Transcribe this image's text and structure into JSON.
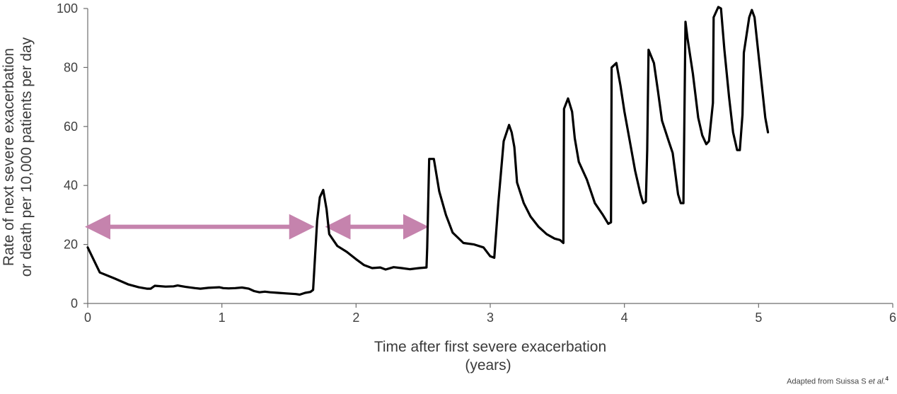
{
  "chart_data": {
    "type": "line",
    "xlabel": "Time after first severe exacerbation",
    "xlabel_line2": "(years)",
    "ylabel": "Rate of next severe exacerbation",
    "ylabel_line2": "or death per 10,000 patients per day",
    "xlim": [
      0,
      6
    ],
    "ylim": [
      0,
      100
    ],
    "xticks": [
      "0",
      "1",
      "2",
      "3",
      "4",
      "5",
      "6"
    ],
    "yticks": [
      "0",
      "20",
      "40",
      "60",
      "80",
      "100"
    ],
    "grid": false,
    "legend": "none",
    "series": [
      {
        "color": "#000000",
        "points": [
          [
            0.0,
            19
          ],
          [
            0.09,
            10.5
          ],
          [
            0.2,
            8.5
          ],
          [
            0.3,
            6.5
          ],
          [
            0.38,
            5.5
          ],
          [
            0.44,
            5
          ],
          [
            0.47,
            5
          ],
          [
            0.5,
            6
          ],
          [
            0.58,
            5.7
          ],
          [
            0.64,
            5.8
          ],
          [
            0.67,
            6.1
          ],
          [
            0.73,
            5.6
          ],
          [
            0.8,
            5.2
          ],
          [
            0.84,
            5
          ],
          [
            0.9,
            5.3
          ],
          [
            0.94,
            5.4
          ],
          [
            0.98,
            5.5
          ],
          [
            1.01,
            5.2
          ],
          [
            1.05,
            5.1
          ],
          [
            1.1,
            5.2
          ],
          [
            1.15,
            5.4
          ],
          [
            1.2,
            5
          ],
          [
            1.24,
            4.2
          ],
          [
            1.28,
            3.8
          ],
          [
            1.32,
            4
          ],
          [
            1.36,
            3.8
          ],
          [
            1.42,
            3.6
          ],
          [
            1.48,
            3.4
          ],
          [
            1.55,
            3.2
          ],
          [
            1.58,
            3.0
          ],
          [
            1.62,
            3.6
          ],
          [
            1.66,
            3.9
          ],
          [
            1.68,
            4.6
          ],
          [
            1.71,
            28
          ],
          [
            1.73,
            36
          ],
          [
            1.755,
            38.5
          ],
          [
            1.78,
            32
          ],
          [
            1.8,
            23.5
          ],
          [
            1.86,
            19.5
          ],
          [
            1.93,
            17.5
          ],
          [
            2.0,
            15
          ],
          [
            2.06,
            13
          ],
          [
            2.12,
            12
          ],
          [
            2.18,
            12.2
          ],
          [
            2.22,
            11.5
          ],
          [
            2.28,
            12.3
          ],
          [
            2.34,
            12
          ],
          [
            2.4,
            11.6
          ],
          [
            2.47,
            12
          ],
          [
            2.525,
            12.2
          ],
          [
            2.53,
            19
          ],
          [
            2.545,
            49
          ],
          [
            2.58,
            49
          ],
          [
            2.62,
            38
          ],
          [
            2.67,
            30
          ],
          [
            2.72,
            24
          ],
          [
            2.8,
            20.5
          ],
          [
            2.88,
            20
          ],
          [
            2.95,
            19
          ],
          [
            3.0,
            16
          ],
          [
            3.03,
            15.5
          ],
          [
            3.06,
            34
          ],
          [
            3.1,
            55
          ],
          [
            3.14,
            60.5
          ],
          [
            3.16,
            58
          ],
          [
            3.18,
            53
          ],
          [
            3.2,
            41
          ],
          [
            3.25,
            34
          ],
          [
            3.3,
            29.5
          ],
          [
            3.36,
            26
          ],
          [
            3.42,
            23.5
          ],
          [
            3.48,
            22
          ],
          [
            3.52,
            21.5
          ],
          [
            3.545,
            20.5
          ],
          [
            3.55,
            66
          ],
          [
            3.58,
            69.5
          ],
          [
            3.61,
            65
          ],
          [
            3.63,
            56
          ],
          [
            3.66,
            48
          ],
          [
            3.72,
            42
          ],
          [
            3.78,
            34
          ],
          [
            3.84,
            30
          ],
          [
            3.88,
            27
          ],
          [
            3.9,
            27.5
          ],
          [
            3.905,
            80
          ],
          [
            3.94,
            81.5
          ],
          [
            3.97,
            74
          ],
          [
            4.0,
            65
          ],
          [
            4.04,
            55
          ],
          [
            4.08,
            45
          ],
          [
            4.12,
            37
          ],
          [
            4.14,
            34
          ],
          [
            4.16,
            34.5
          ],
          [
            4.17,
            52
          ],
          [
            4.18,
            86
          ],
          [
            4.22,
            81.5
          ],
          [
            4.25,
            72
          ],
          [
            4.28,
            62
          ],
          [
            4.33,
            55
          ],
          [
            4.36,
            51
          ],
          [
            4.38,
            44
          ],
          [
            4.4,
            37
          ],
          [
            4.42,
            34
          ],
          [
            4.44,
            34
          ],
          [
            4.455,
            95.5
          ],
          [
            4.47,
            90
          ],
          [
            4.51,
            78
          ],
          [
            4.55,
            63
          ],
          [
            4.58,
            57
          ],
          [
            4.61,
            54
          ],
          [
            4.63,
            55
          ],
          [
            4.66,
            68
          ],
          [
            4.665,
            97
          ],
          [
            4.7,
            100.5
          ],
          [
            4.72,
            100
          ],
          [
            4.745,
            86
          ],
          [
            4.78,
            70
          ],
          [
            4.81,
            58
          ],
          [
            4.84,
            52
          ],
          [
            4.86,
            52
          ],
          [
            4.88,
            64
          ],
          [
            4.89,
            85
          ],
          [
            4.93,
            97
          ],
          [
            4.95,
            99.5
          ],
          [
            4.97,
            97
          ],
          [
            5.01,
            80
          ],
          [
            5.05,
            63
          ],
          [
            5.07,
            58
          ]
        ]
      }
    ],
    "arrows": [
      {
        "from": 0.0,
        "to": 1.67,
        "y": 26,
        "color": "#c583ad"
      },
      {
        "from": 1.79,
        "to": 2.52,
        "y": 26,
        "color": "#c583ad"
      }
    ]
  },
  "source_note": {
    "prefix": "Adapted from Suissa S ",
    "italic": "et al.",
    "superscript": "4"
  }
}
